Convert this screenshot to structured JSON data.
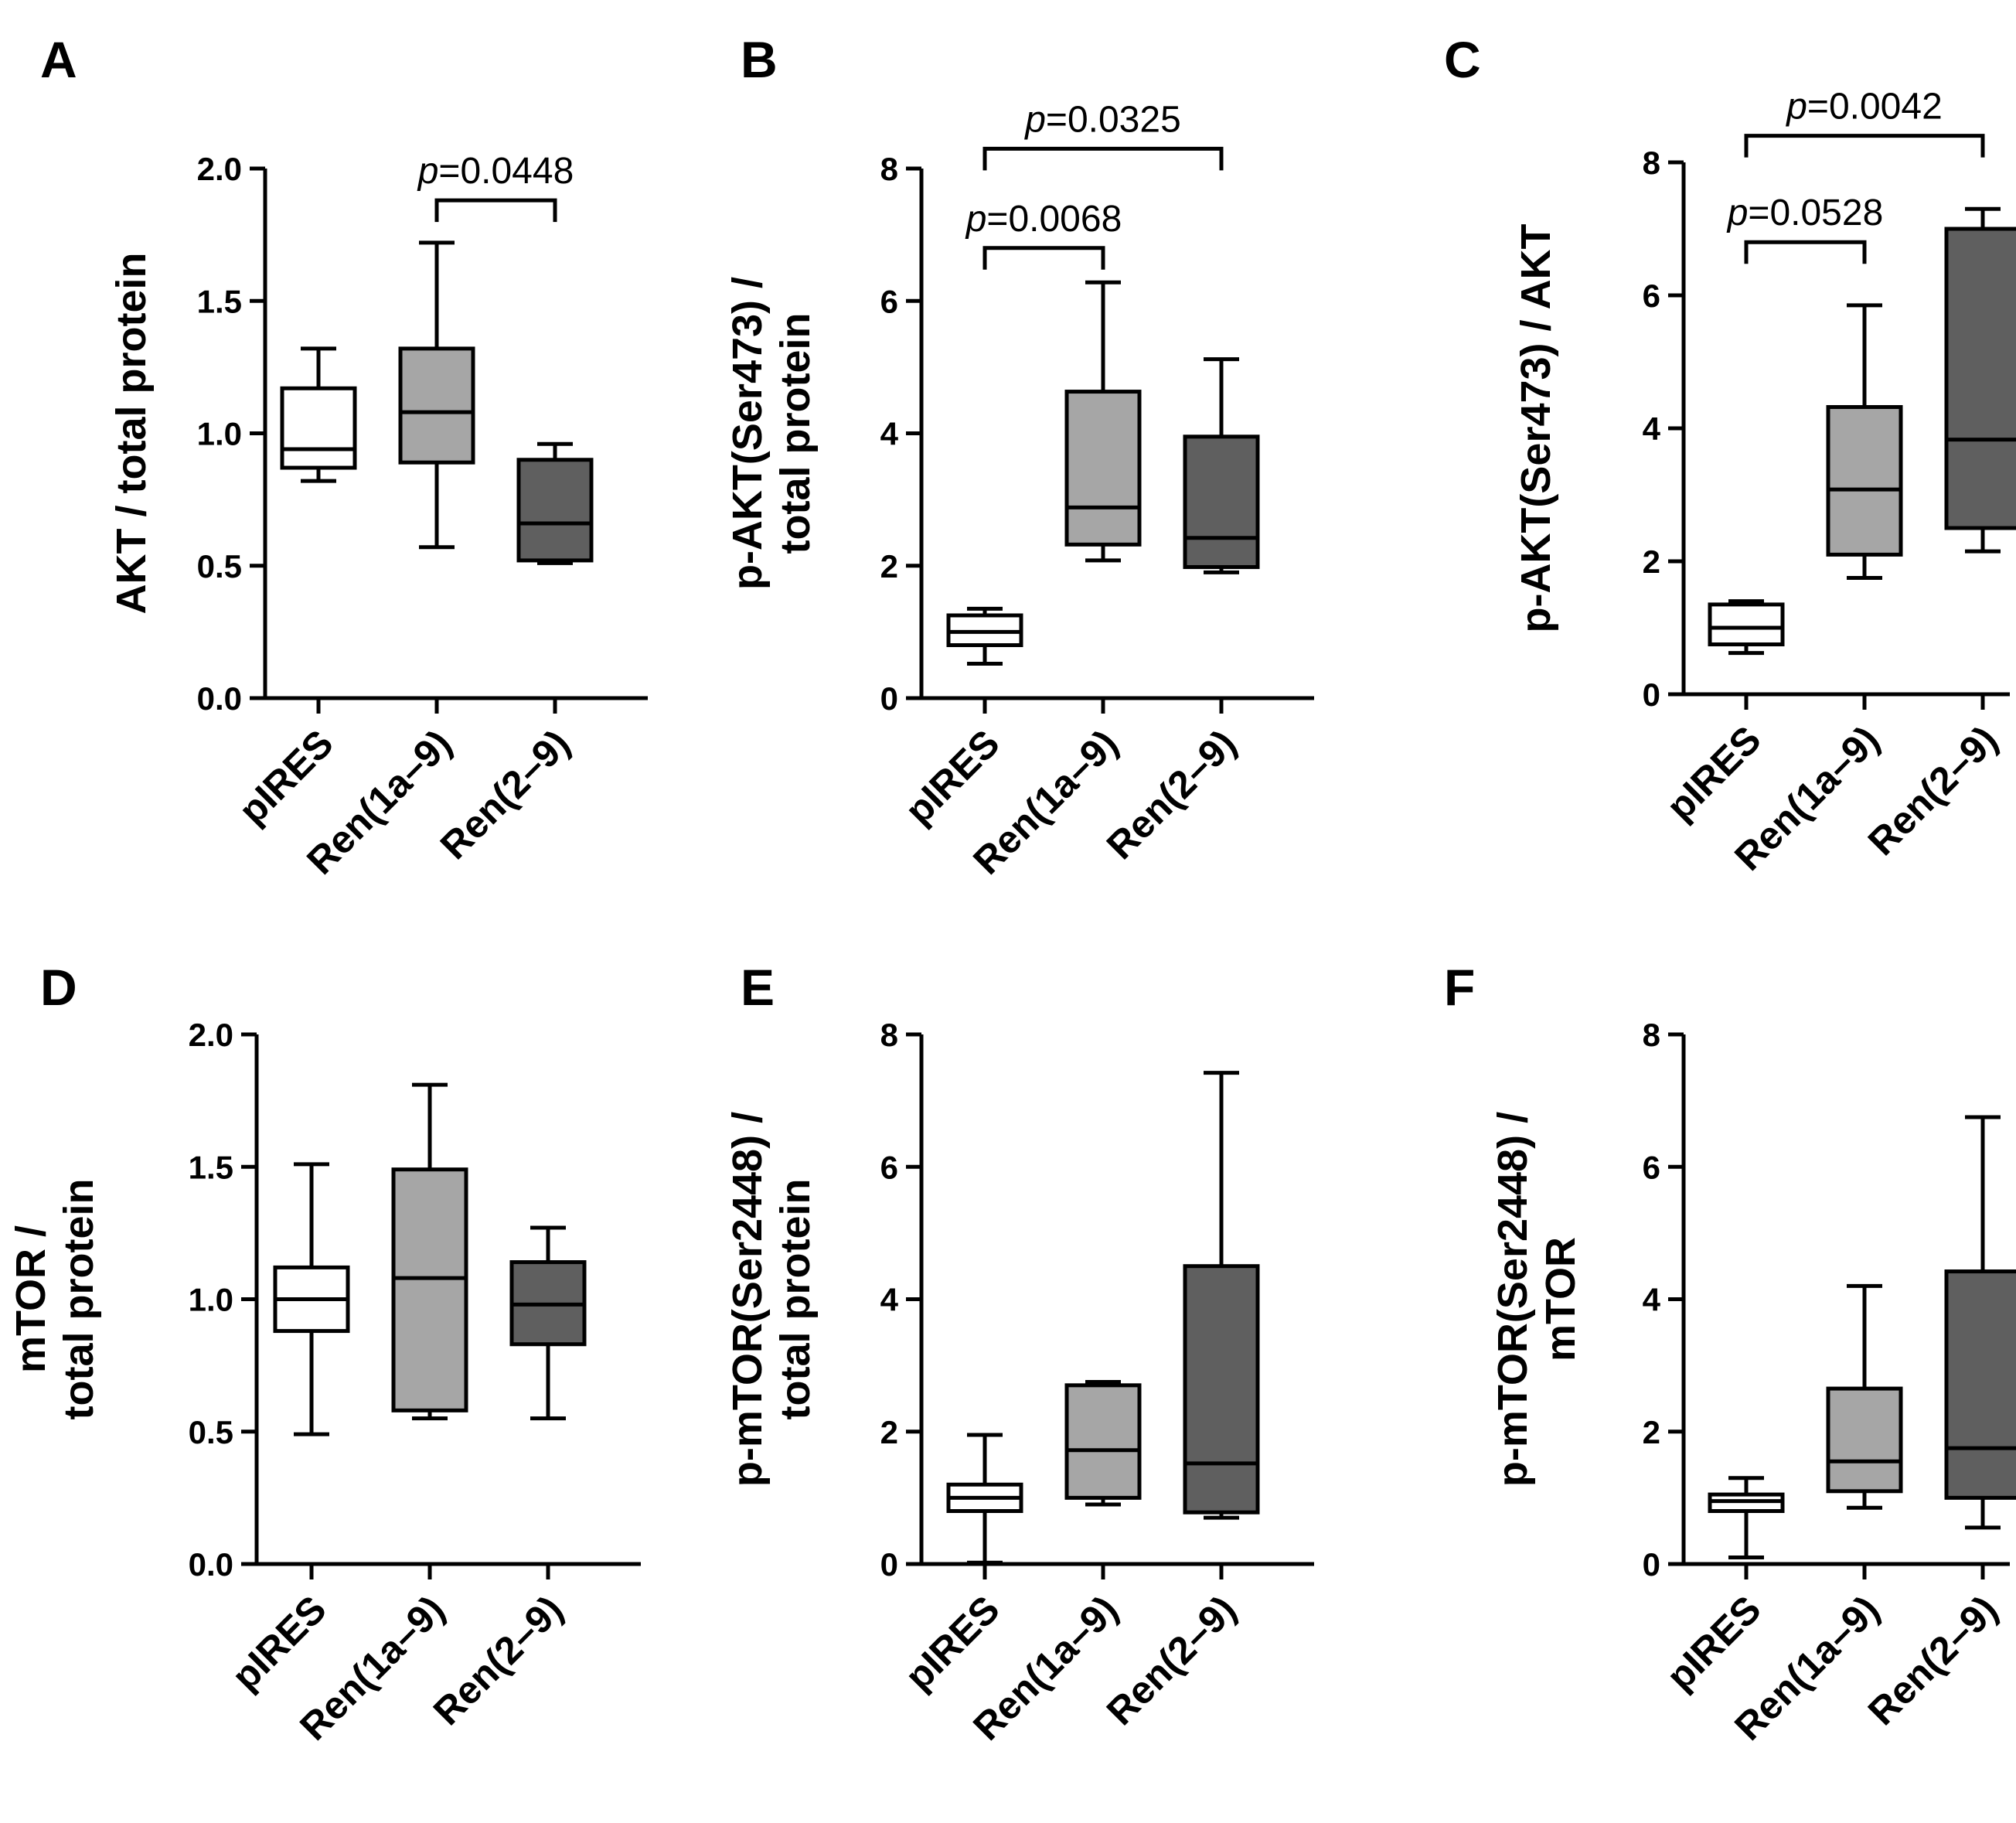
{
  "colors": {
    "group_fills": [
      "#ffffff",
      "#a6a6a6",
      "#5f5f5f"
    ],
    "stroke": "#000000"
  },
  "chart_data": [
    {
      "panel": "A",
      "type": "boxplot",
      "categories": [
        "pIRES",
        "Ren(1a–9)",
        "Ren(2–9)"
      ],
      "ylabel_lines": [
        "AKT / total protein"
      ],
      "ylim": [
        0.0,
        2.0
      ],
      "yticks": [
        0.0,
        0.5,
        1.0,
        1.5,
        2.0
      ],
      "ytick_labels": [
        "0.0",
        "0.5",
        "1.0",
        "1.5",
        "2.0"
      ],
      "boxes": [
        {
          "min": 0.82,
          "q1": 0.87,
          "median": 0.94,
          "q3": 1.17,
          "max": 1.32
        },
        {
          "min": 0.57,
          "q1": 0.89,
          "median": 1.08,
          "q3": 1.32,
          "max": 1.72
        },
        {
          "min": 0.51,
          "q1": 0.52,
          "median": 0.66,
          "q3": 0.9,
          "max": 0.96
        }
      ],
      "annotations": [
        {
          "from": 1,
          "to": 2,
          "y": 1.88,
          "italic": "p",
          "text": "=0.0448"
        }
      ]
    },
    {
      "panel": "B",
      "type": "boxplot",
      "categories": [
        "pIRES",
        "Ren(1a–9)",
        "Ren(2–9)"
      ],
      "ylabel_lines": [
        "p-AKT(Ser473) /",
        "total protein"
      ],
      "ylim": [
        0,
        8
      ],
      "yticks": [
        0,
        2,
        4,
        6,
        8
      ],
      "ytick_labels": [
        "0",
        "2",
        "4",
        "6",
        "8"
      ],
      "boxes": [
        {
          "min": 0.52,
          "q1": 0.8,
          "median": 1.0,
          "q3": 1.25,
          "max": 1.35
        },
        {
          "min": 2.08,
          "q1": 2.32,
          "median": 2.88,
          "q3": 4.63,
          "max": 6.28
        },
        {
          "min": 1.9,
          "q1": 1.98,
          "median": 2.42,
          "q3": 3.95,
          "max": 5.12
        }
      ],
      "annotations": [
        {
          "from": 0,
          "to": 1,
          "y": 6.8,
          "italic": "p",
          "text": "=0.0068"
        },
        {
          "from": 0,
          "to": 2,
          "y": 8.3,
          "italic": "p",
          "text": "=0.0325"
        }
      ]
    },
    {
      "panel": "C",
      "type": "boxplot",
      "categories": [
        "pIRES",
        "Ren(1a–9)",
        "Ren(2–9)"
      ],
      "ylabel_lines": [
        "p-AKT(Ser473) / AKT"
      ],
      "ylim": [
        0,
        8
      ],
      "yticks": [
        0,
        2,
        4,
        6,
        8
      ],
      "ytick_labels": [
        "0",
        "2",
        "4",
        "6",
        "8"
      ],
      "boxes": [
        {
          "min": 0.62,
          "q1": 0.75,
          "median": 1.0,
          "q3": 1.35,
          "max": 1.4
        },
        {
          "min": 1.75,
          "q1": 2.1,
          "median": 3.08,
          "q3": 4.32,
          "max": 5.85
        },
        {
          "min": 2.15,
          "q1": 2.5,
          "median": 3.83,
          "q3": 7.0,
          "max": 7.3
        }
      ],
      "annotations": [
        {
          "from": 0,
          "to": 1,
          "y": 6.8,
          "italic": "p",
          "text": "=0.0528"
        },
        {
          "from": 0,
          "to": 2,
          "y": 8.4,
          "italic": "p",
          "text": "=0.0042"
        }
      ]
    },
    {
      "panel": "D",
      "type": "boxplot",
      "categories": [
        "pIRES",
        "Ren(1a–9)",
        "Ren(2–9)"
      ],
      "ylabel_lines": [
        "mTOR /",
        "total protein"
      ],
      "ylim": [
        0.0,
        2.0
      ],
      "yticks": [
        0.0,
        0.5,
        1.0,
        1.5,
        2.0
      ],
      "ytick_labels": [
        "0.0",
        "0.5",
        "1.0",
        "1.5",
        "2.0"
      ],
      "boxes": [
        {
          "min": 0.49,
          "q1": 0.88,
          "median": 1.0,
          "q3": 1.12,
          "max": 1.51
        },
        {
          "min": 0.55,
          "q1": 0.58,
          "median": 1.08,
          "q3": 1.49,
          "max": 1.81
        },
        {
          "min": 0.55,
          "q1": 0.83,
          "median": 0.98,
          "q3": 1.14,
          "max": 1.27
        }
      ],
      "annotations": []
    },
    {
      "panel": "E",
      "type": "boxplot",
      "categories": [
        "pIRES",
        "Ren(1a–9)",
        "Ren(2–9)"
      ],
      "ylabel_lines": [
        "p-mTOR(Ser2448) /",
        "total protein"
      ],
      "ylim": [
        0,
        8
      ],
      "yticks": [
        0,
        2,
        4,
        6,
        8
      ],
      "ytick_labels": [
        "0",
        "2",
        "4",
        "6",
        "8"
      ],
      "boxes": [
        {
          "min": 0.02,
          "q1": 0.8,
          "median": 1.0,
          "q3": 1.2,
          "max": 1.95
        },
        {
          "min": 0.9,
          "q1": 1.0,
          "median": 1.72,
          "q3": 2.7,
          "max": 2.75
        },
        {
          "min": 0.7,
          "q1": 0.78,
          "median": 1.52,
          "q3": 4.5,
          "max": 7.42
        }
      ],
      "annotations": []
    },
    {
      "panel": "F",
      "type": "boxplot",
      "categories": [
        "pIRES",
        "Ren(1a–9)",
        "Ren(2–9)"
      ],
      "ylabel_lines": [
        "p-mTOR(Ser2448) /",
        "mTOR"
      ],
      "ylim": [
        0,
        8
      ],
      "yticks": [
        0,
        2,
        4,
        6,
        8
      ],
      "ytick_labels": [
        "0",
        "2",
        "4",
        "6",
        "8"
      ],
      "boxes": [
        {
          "min": 0.1,
          "q1": 0.8,
          "median": 0.95,
          "q3": 1.05,
          "max": 1.3
        },
        {
          "min": 0.85,
          "q1": 1.1,
          "median": 1.55,
          "q3": 2.65,
          "max": 4.2
        },
        {
          "min": 0.55,
          "q1": 1.0,
          "median": 1.75,
          "q3": 4.42,
          "max": 6.75
        }
      ],
      "annotations": []
    }
  ]
}
